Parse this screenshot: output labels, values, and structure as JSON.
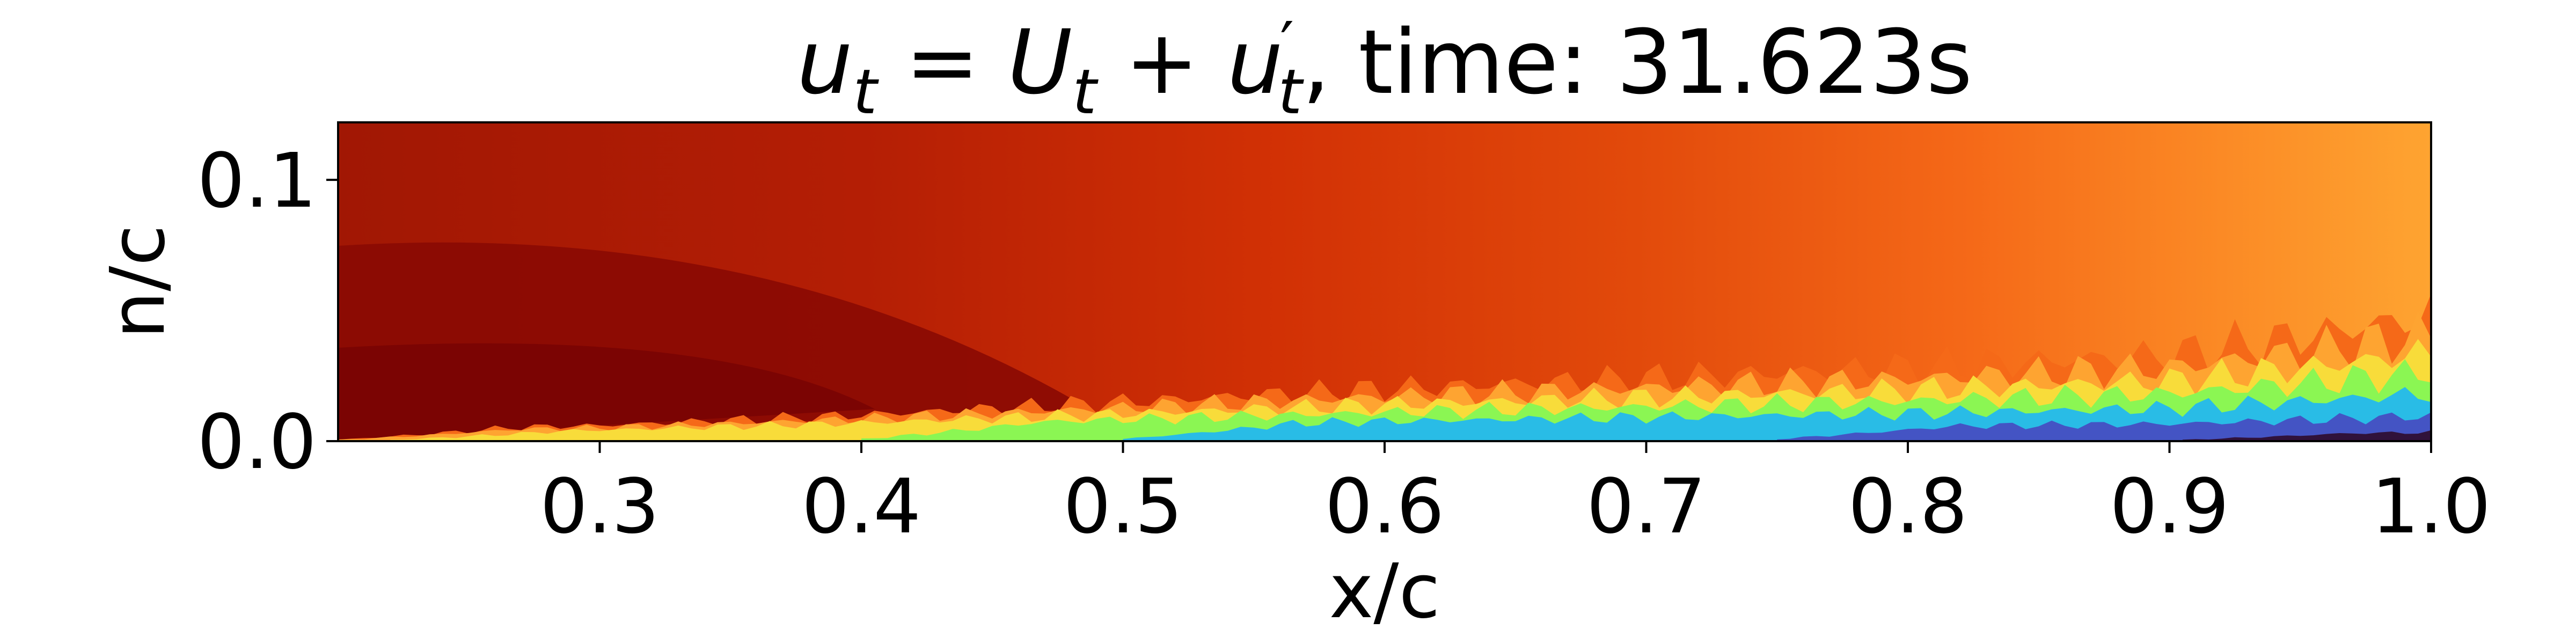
{
  "chart_data": {
    "type": "heatmap",
    "title_prefix": "u",
    "title_subscript": "t",
    "title_equals": " = ",
    "title_mean": "U",
    "title_plus": " + ",
    "title_fluct": "u",
    "title_prime": "′",
    "title_suffix": ", time: 31.623s",
    "xlabel": "x/c",
    "ylabel": "n/c",
    "xlim": [
      0.2,
      1.0
    ],
    "ylim": [
      0.0,
      0.122
    ],
    "xticks": [
      "0.3",
      "0.4",
      "0.5",
      "0.6",
      "0.7",
      "0.8",
      "0.9",
      "1.0"
    ],
    "xtick_values": [
      0.3,
      0.4,
      0.5,
      0.6,
      0.7,
      0.8,
      0.9,
      1.0
    ],
    "yticks": [
      "0.0",
      "0.1"
    ],
    "ytick_values": [
      0.0,
      0.1
    ],
    "colormap": "turbo",
    "colors": {
      "dark_red": "#7a0403",
      "red": "#a11704",
      "orange_red": "#d23105",
      "orange": "#f56918",
      "light_orange": "#fea431",
      "yellow": "#f8dc3a",
      "green": "#8bf653",
      "cyan": "#29bce6",
      "blue": "#4454c4",
      "dark_blue": "#30123b"
    },
    "boundary_layer_thickness": {
      "x": [
        0.2,
        0.3,
        0.4,
        0.5,
        0.6,
        0.7,
        0.8,
        0.9,
        0.95,
        1.0
      ],
      "y": [
        0.004,
        0.006,
        0.01,
        0.015,
        0.02,
        0.024,
        0.028,
        0.033,
        0.04,
        0.048
      ]
    }
  }
}
